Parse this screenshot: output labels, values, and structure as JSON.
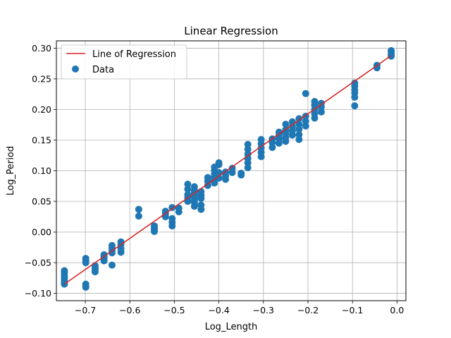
{
  "chart_data": {
    "type": "scatter",
    "title": "Linear Regression",
    "xlabel": "Log_Length",
    "ylabel": "Log_Period",
    "xlim": [
      -0.765,
      0.02
    ],
    "ylim": [
      -0.112,
      0.312
    ],
    "grid": true,
    "legend_position": "top-left",
    "x_ticks": [
      -0.7,
      -0.6,
      -0.5,
      -0.4,
      -0.3,
      -0.2,
      -0.1,
      0.0
    ],
    "x_tick_labels": [
      "−0.7",
      "−0.6",
      "−0.5",
      "−0.4",
      "−0.3",
      "−0.2",
      "−0.1",
      "0.0"
    ],
    "y_ticks": [
      -0.1,
      -0.05,
      0.0,
      0.05,
      0.1,
      0.15,
      0.2,
      0.25,
      0.3
    ],
    "y_tick_labels": [
      "−0.10",
      "−0.05",
      "0.00",
      "0.05",
      "0.10",
      "0.15",
      "0.20",
      "0.25",
      "0.30"
    ],
    "series": [
      {
        "name": "Line of Regression",
        "kind": "line",
        "color": "#d62728",
        "x": [
          -0.747,
          -0.013
        ],
        "y": [
          -0.085,
          0.288
        ]
      },
      {
        "name": "Data",
        "kind": "scatter",
        "color": "#1f77b4",
        "x": [
          -0.747,
          -0.747,
          -0.747,
          -0.747,
          -0.747,
          -0.747,
          -0.747,
          -0.699,
          -0.699,
          -0.699,
          -0.699,
          -0.699,
          -0.699,
          -0.678,
          -0.678,
          -0.678,
          -0.678,
          -0.658,
          -0.658,
          -0.658,
          -0.658,
          -0.64,
          -0.64,
          -0.64,
          -0.64,
          -0.64,
          -0.62,
          -0.62,
          -0.62,
          -0.62,
          -0.58,
          -0.58,
          -0.545,
          -0.545,
          -0.545,
          -0.545,
          -0.52,
          -0.52,
          -0.52,
          -0.505,
          -0.505,
          -0.505,
          -0.505,
          -0.49,
          -0.49,
          -0.47,
          -0.47,
          -0.47,
          -0.47,
          -0.47,
          -0.455,
          -0.455,
          -0.455,
          -0.455,
          -0.455,
          -0.455,
          -0.455,
          -0.455,
          -0.44,
          -0.44,
          -0.44,
          -0.44,
          -0.44,
          -0.425,
          -0.425,
          -0.425,
          -0.41,
          -0.41,
          -0.41,
          -0.41,
          -0.41,
          -0.41,
          -0.4,
          -0.4,
          -0.4,
          -0.4,
          -0.385,
          -0.385,
          -0.385,
          -0.37,
          -0.37,
          -0.35,
          -0.35,
          -0.335,
          -0.335,
          -0.335,
          -0.335,
          -0.335,
          -0.335,
          -0.305,
          -0.305,
          -0.305,
          -0.305,
          -0.305,
          -0.28,
          -0.28,
          -0.28,
          -0.265,
          -0.265,
          -0.265,
          -0.265,
          -0.25,
          -0.25,
          -0.25,
          -0.25,
          -0.25,
          -0.235,
          -0.235,
          -0.235,
          -0.235,
          -0.22,
          -0.22,
          -0.22,
          -0.22,
          -0.22,
          -0.205,
          -0.205,
          -0.205,
          -0.205,
          -0.185,
          -0.185,
          -0.185,
          -0.185,
          -0.185,
          -0.17,
          -0.17,
          -0.17,
          -0.095,
          -0.095,
          -0.095,
          -0.095,
          -0.095,
          -0.095,
          -0.045,
          -0.045,
          -0.013,
          -0.013,
          -0.013,
          -0.013
        ],
        "y": [
          -0.063,
          -0.066,
          -0.07,
          -0.074,
          -0.078,
          -0.082,
          -0.085,
          -0.043,
          -0.047,
          -0.05,
          -0.085,
          -0.088,
          -0.09,
          -0.055,
          -0.058,
          -0.062,
          -0.065,
          -0.037,
          -0.04,
          -0.044,
          -0.047,
          -0.022,
          -0.026,
          -0.03,
          -0.034,
          -0.054,
          -0.016,
          -0.02,
          -0.027,
          -0.033,
          0.026,
          0.037,
          0.001,
          0.004,
          0.007,
          0.01,
          0.025,
          0.03,
          0.034,
          0.01,
          0.016,
          0.022,
          0.04,
          0.033,
          0.039,
          0.05,
          0.056,
          0.061,
          0.07,
          0.078,
          0.042,
          0.048,
          0.052,
          0.057,
          0.061,
          0.064,
          0.068,
          0.074,
          0.037,
          0.044,
          0.055,
          0.06,
          0.066,
          0.076,
          0.083,
          0.089,
          0.08,
          0.085,
          0.09,
          0.095,
          0.101,
          0.106,
          0.088,
          0.097,
          0.11,
          0.113,
          0.086,
          0.092,
          0.098,
          0.097,
          0.104,
          0.093,
          0.096,
          0.105,
          0.113,
          0.12,
          0.127,
          0.135,
          0.143,
          0.123,
          0.13,
          0.137,
          0.144,
          0.151,
          0.138,
          0.146,
          0.152,
          0.145,
          0.152,
          0.158,
          0.163,
          0.148,
          0.154,
          0.161,
          0.167,
          0.176,
          0.158,
          0.165,
          0.172,
          0.18,
          0.151,
          0.159,
          0.168,
          0.176,
          0.185,
          0.173,
          0.181,
          0.189,
          0.226,
          0.186,
          0.193,
          0.2,
          0.207,
          0.213,
          0.196,
          0.204,
          0.21,
          0.206,
          0.22,
          0.227,
          0.232,
          0.238,
          0.243,
          0.268,
          0.272,
          0.287,
          0.29,
          0.293,
          0.296
        ]
      }
    ]
  }
}
